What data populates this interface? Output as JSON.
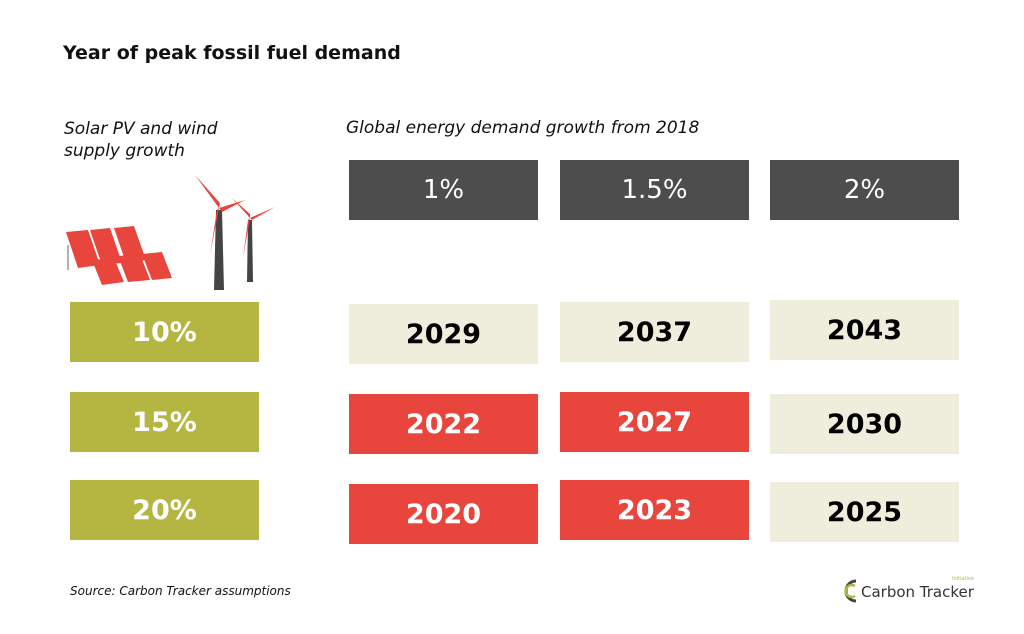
{
  "title": "Year of peak fossil fuel demand",
  "left_label": "Solar PV and wind supply growth",
  "right_label": "Global energy demand growth from 2018",
  "source": "Source: Carbon Tracker assumptions",
  "logo": {
    "text": "Carbon Tracker",
    "subtext": "Initiative"
  },
  "colors": {
    "header": "#4d4d4d",
    "supply": "#b5b542",
    "early": "#e8463c",
    "late": "#efeedd"
  },
  "chart_data": {
    "type": "table",
    "columns": [
      "1%",
      "1.5%",
      "2%"
    ],
    "rows": [
      {
        "label": "10%",
        "values": [
          "2029",
          "2037",
          "2043"
        ],
        "highlight": [
          false,
          false,
          false
        ]
      },
      {
        "label": "15%",
        "values": [
          "2022",
          "2027",
          "2030"
        ],
        "highlight": [
          true,
          true,
          false
        ]
      },
      {
        "label": "20%",
        "values": [
          "2020",
          "2023",
          "2025"
        ],
        "highlight": [
          true,
          true,
          false
        ]
      }
    ]
  }
}
